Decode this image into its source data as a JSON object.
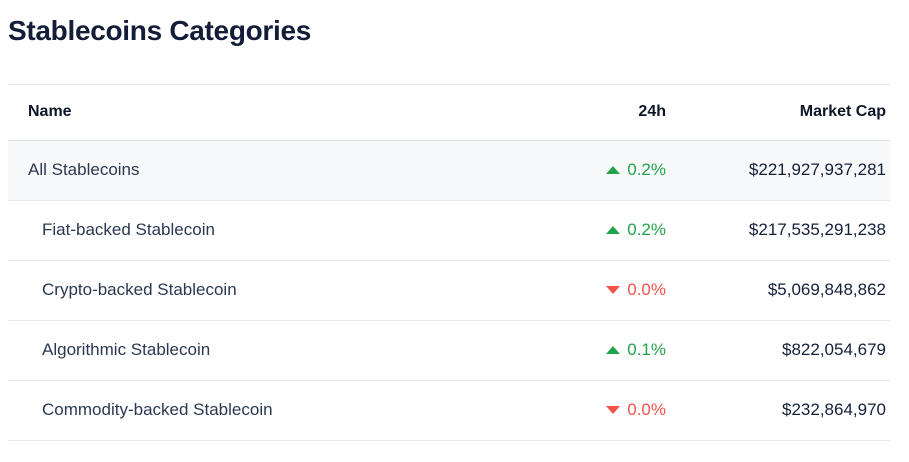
{
  "page": {
    "title": "Stablecoins Categories"
  },
  "table": {
    "columns": [
      {
        "label": "Name"
      },
      {
        "label": "24h"
      },
      {
        "label": "Market Cap"
      }
    ],
    "rows": [
      {
        "name": "All Stablecoins",
        "level": 0,
        "highlight": true,
        "direction": "up",
        "change": "0.2%",
        "market_cap": "$221,927,937,281"
      },
      {
        "name": "Fiat-backed Stablecoin",
        "level": 1,
        "highlight": false,
        "direction": "up",
        "change": "0.2%",
        "market_cap": "$217,535,291,238"
      },
      {
        "name": "Crypto-backed Stablecoin",
        "level": 1,
        "highlight": false,
        "direction": "down",
        "change": "0.0%",
        "market_cap": "$5,069,848,862"
      },
      {
        "name": "Algorithmic Stablecoin",
        "level": 1,
        "highlight": false,
        "direction": "up",
        "change": "0.1%",
        "market_cap": "$822,054,679"
      },
      {
        "name": "Commodity-backed Stablecoin",
        "level": 1,
        "highlight": false,
        "direction": "down",
        "change": "0.0%",
        "market_cap": "$232,864,970"
      }
    ]
  },
  "colors": {
    "positive": "#22a34a",
    "negative": "#f0524c",
    "title_text": "#131d38",
    "row_highlight_bg": "#f8f9fb",
    "border": "#e5e7eb"
  }
}
